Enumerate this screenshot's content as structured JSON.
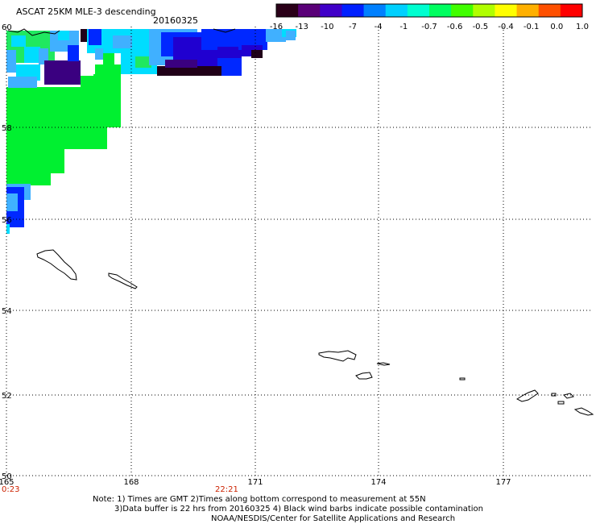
{
  "header": {
    "title": "ASCAT 25KM MLE-3 descending",
    "date": "20160325"
  },
  "colorbar": {
    "labels": [
      "-16",
      "-13",
      "-10",
      "-7",
      "-4",
      "-1",
      "-0.7",
      "-0.6",
      "-0.5",
      "-0.4",
      "-0.1",
      "0.0",
      "1.0"
    ],
    "colors": [
      "#2a0018",
      "#5a0078",
      "#4000c8",
      "#0020ff",
      "#0080ff",
      "#00d0ff",
      "#00ffd0",
      "#00ff60",
      "#40ff00",
      "#b0ff00",
      "#ffff00",
      "#ffb000",
      "#ff5000",
      "#ff0000"
    ]
  },
  "axes": {
    "lat_labels": [
      "60",
      "58",
      "56",
      "54",
      "52",
      "50"
    ],
    "lon_labels": [
      "165",
      "168",
      "171",
      "174",
      "177"
    ]
  },
  "times": [
    {
      "label": "0:23",
      "color": "#cc2200"
    },
    {
      "label": "22:21",
      "color": "#cc2200"
    }
  ],
  "notes": {
    "line1": "Note: 1) Times are GMT 2)Times along bottom correspond to measurement at 55N",
    "line2": "3)Data buffer is 22 hrs from 20160325 4) Black wind barbs indicate possible contamination",
    "line3": "NOAA/NESDIS/Center for Satellite Applications and Research"
  },
  "map_colors": {
    "green": "#00f030",
    "light_green": "#20e860",
    "cyan": "#00ddff",
    "light_blue": "#40b0ff",
    "blue": "#0028ff",
    "dark_blue": "#2000d0",
    "purple": "#3a0080",
    "dark": "#200018"
  }
}
